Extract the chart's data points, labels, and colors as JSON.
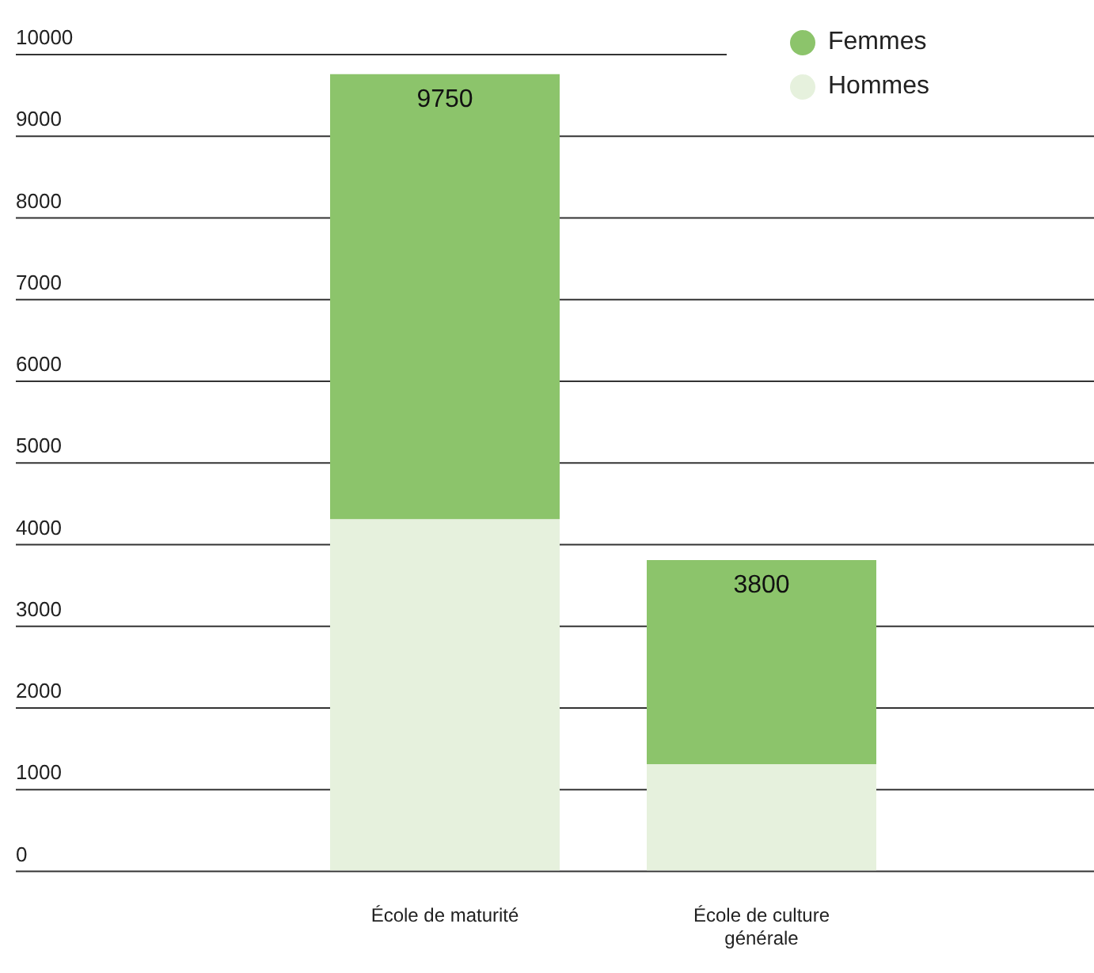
{
  "chart_data": {
    "type": "bar",
    "stacked": true,
    "categories": [
      "École de maturité",
      "École de culture générale"
    ],
    "series": [
      {
        "name": "Hommes",
        "color": "#e6f1dd",
        "values": [
          4300,
          1300
        ]
      },
      {
        "name": "Femmes",
        "color": "#8cc46b",
        "values": [
          5450,
          2500
        ]
      }
    ],
    "totals": [
      "9750",
      "3800"
    ],
    "ylim": [
      0,
      10000
    ],
    "yticks": [
      0,
      1000,
      2000,
      3000,
      4000,
      5000,
      6000,
      7000,
      8000,
      9000,
      10000
    ],
    "grid": "y",
    "legend": "top right"
  }
}
